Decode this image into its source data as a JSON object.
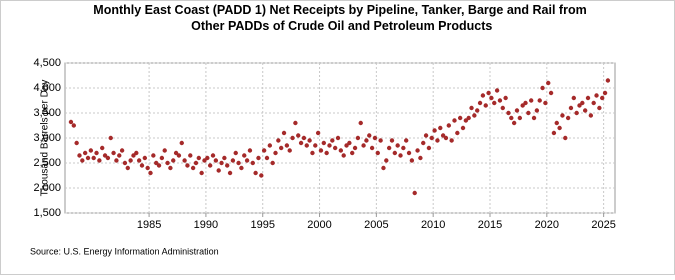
{
  "chart_data": {
    "type": "scatter",
    "title": "Monthly East Coast (PADD 1) Net Receipts by Pipeline, Tanker, Barge and Rail from Other PADDs of Crude Oil and Petroleum Products",
    "y_label": "Thousand Barrels per Day",
    "source": "Source: U.S. Energy Information Administration",
    "xlim": [
      1977.6,
      2026.0
    ],
    "xticks": [
      1985,
      1990,
      1995,
      2000,
      2005,
      2010,
      2015,
      2020,
      2025
    ],
    "ylim": [
      1500,
      4500
    ],
    "yticks": [
      {
        "value": 1500,
        "label": "1,500"
      },
      {
        "value": 2000,
        "label": "2,000"
      },
      {
        "value": 2500,
        "label": "2,500"
      },
      {
        "value": 3000,
        "label": "3,000"
      },
      {
        "value": 3500,
        "label": "3,500"
      },
      {
        "value": 4000,
        "label": "4,000"
      },
      {
        "value": 4500,
        "label": "4,500"
      }
    ],
    "grid": true,
    "series": [
      {
        "color": "#a52a2a",
        "x": [
          1978.125,
          1978.375,
          1978.625,
          1978.875,
          1979.125,
          1979.375,
          1979.625,
          1979.875,
          1980.125,
          1980.375,
          1980.625,
          1980.875,
          1981.125,
          1981.375,
          1981.625,
          1981.875,
          1982.125,
          1982.375,
          1982.625,
          1982.875,
          1983.125,
          1983.375,
          1983.625,
          1983.875,
          1984.125,
          1984.375,
          1984.625,
          1984.875,
          1985.125,
          1985.375,
          1985.625,
          1985.875,
          1986.125,
          1986.375,
          1986.625,
          1986.875,
          1987.125,
          1987.375,
          1987.625,
          1987.875,
          1988.125,
          1988.375,
          1988.625,
          1988.875,
          1989.125,
          1989.375,
          1989.625,
          1989.875,
          1990.125,
          1990.375,
          1990.625,
          1990.875,
          1991.125,
          1991.375,
          1991.625,
          1991.875,
          1992.125,
          1992.375,
          1992.625,
          1992.875,
          1993.125,
          1993.375,
          1993.625,
          1993.875,
          1994.125,
          1994.375,
          1994.625,
          1994.875,
          1995.125,
          1995.375,
          1995.625,
          1995.875,
          1996.125,
          1996.375,
          1996.625,
          1996.875,
          1997.125,
          1997.375,
          1997.625,
          1997.875,
          1998.125,
          1998.375,
          1998.625,
          1998.875,
          1999.125,
          1999.375,
          1999.625,
          1999.875,
          2000.125,
          2000.375,
          2000.625,
          2000.875,
          2001.125,
          2001.375,
          2001.625,
          2001.875,
          2002.125,
          2002.375,
          2002.625,
          2002.875,
          2003.125,
          2003.375,
          2003.625,
          2003.875,
          2004.125,
          2004.375,
          2004.625,
          2004.875,
          2005.125,
          2005.375,
          2005.625,
          2005.875,
          2006.125,
          2006.375,
          2006.625,
          2006.875,
          2007.125,
          2007.375,
          2007.625,
          2007.875,
          2008.125,
          2008.375,
          2008.625,
          2008.875,
          2009.125,
          2009.375,
          2009.625,
          2009.875,
          2010.125,
          2010.375,
          2010.625,
          2010.875,
          2011.125,
          2011.375,
          2011.625,
          2011.875,
          2012.125,
          2012.375,
          2012.625,
          2012.875,
          2013.125,
          2013.375,
          2013.625,
          2013.875,
          2014.125,
          2014.375,
          2014.625,
          2014.875,
          2015.125,
          2015.375,
          2015.625,
          2015.875,
          2016.125,
          2016.375,
          2016.625,
          2016.875,
          2017.125,
          2017.375,
          2017.625,
          2017.875,
          2018.125,
          2018.375,
          2018.625,
          2018.875,
          2019.125,
          2019.375,
          2019.625,
          2019.875,
          2020.125,
          2020.375,
          2020.625,
          2020.875,
          2021.125,
          2021.375,
          2021.625,
          2021.875,
          2022.125,
          2022.375,
          2022.625,
          2022.875,
          2023.125,
          2023.375,
          2023.625,
          2023.875,
          2024.125,
          2024.375,
          2024.625,
          2024.875,
          2025.125,
          2025.375
        ],
        "values": [
          3320,
          3250,
          2900,
          2650,
          2550,
          2700,
          2600,
          2750,
          2600,
          2700,
          2550,
          2800,
          2650,
          2600,
          3000,
          2700,
          2550,
          2650,
          2750,
          2500,
          2400,
          2550,
          2650,
          2700,
          2550,
          2450,
          2600,
          2400,
          2300,
          2650,
          2500,
          2450,
          2600,
          2750,
          2500,
          2400,
          2550,
          2700,
          2650,
          2900,
          2550,
          2450,
          2650,
          2400,
          2500,
          2600,
          2300,
          2550,
          2600,
          2450,
          2650,
          2550,
          2350,
          2500,
          2600,
          2450,
          2300,
          2550,
          2700,
          2500,
          2400,
          2650,
          2550,
          2750,
          2500,
          2300,
          2600,
          2250,
          2750,
          2600,
          2850,
          2500,
          2700,
          2950,
          2800,
          3100,
          2850,
          2750,
          3000,
          3300,
          3050,
          2900,
          3000,
          2850,
          2950,
          2700,
          2850,
          3100,
          2750,
          2900,
          2700,
          2850,
          2950,
          2800,
          3000,
          2750,
          2650,
          2850,
          2900,
          2700,
          2800,
          3000,
          3300,
          2850,
          2950,
          3050,
          2800,
          3000,
          2700,
          2950,
          2400,
          2550,
          2800,
          2950,
          2700,
          2850,
          2650,
          2800,
          2950,
          2700,
          2550,
          1900,
          2750,
          2600,
          2900,
          3050,
          2800,
          3000,
          3150,
          2950,
          3200,
          3050,
          3000,
          3250,
          2950,
          3350,
          3100,
          3400,
          3200,
          3350,
          3400,
          3600,
          3450,
          3550,
          3700,
          3850,
          3650,
          3900,
          3800,
          3700,
          3950,
          3750,
          3600,
          3800,
          3500,
          3400,
          3300,
          3550,
          3400,
          3650,
          3700,
          3500,
          3750,
          3400,
          3550,
          3750,
          4000,
          3700,
          4100,
          3900,
          3100,
          3300,
          3200,
          3450,
          3000,
          3400,
          3600,
          3800,
          3500,
          3650,
          3700,
          3550,
          3800,
          3450,
          3700,
          3850,
          3600,
          3800,
          3900,
          4150
        ]
      }
    ]
  }
}
